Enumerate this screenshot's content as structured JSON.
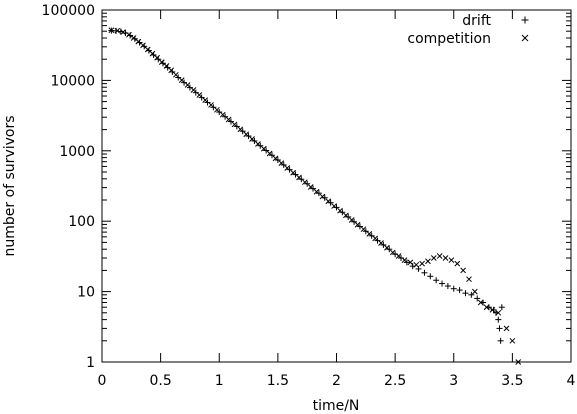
{
  "chart_data": {
    "type": "scatter",
    "title": "",
    "xlabel": "time/N",
    "ylabel": "number of survivors",
    "xlim": [
      0,
      4
    ],
    "ylim": [
      1,
      100000
    ],
    "yscale": "log",
    "grid": false,
    "legend_position": "top-right",
    "x_ticks": [
      {
        "value": 0,
        "label": "0"
      },
      {
        "value": 0.5,
        "label": "0.5"
      },
      {
        "value": 1,
        "label": "1"
      },
      {
        "value": 1.5,
        "label": "1.5"
      },
      {
        "value": 2,
        "label": "2"
      },
      {
        "value": 2.5,
        "label": "2.5"
      },
      {
        "value": 3,
        "label": "3"
      },
      {
        "value": 3.5,
        "label": "3.5"
      },
      {
        "value": 4,
        "label": "4"
      }
    ],
    "y_ticks": [
      {
        "value": 1,
        "label": "1"
      },
      {
        "value": 10,
        "label": "10"
      },
      {
        "value": 100,
        "label": "100"
      },
      {
        "value": 1000,
        "label": "1000"
      },
      {
        "value": 10000,
        "label": "10000"
      },
      {
        "value": 100000,
        "label": "100000"
      }
    ],
    "series": [
      {
        "name": "drift",
        "marker": "plus",
        "color": "#000000",
        "points": [
          [
            0.08,
            51000
          ],
          [
            0.12,
            50500
          ],
          [
            0.16,
            49500
          ],
          [
            0.2,
            47000
          ],
          [
            0.24,
            43500
          ],
          [
            0.28,
            39000
          ],
          [
            0.32,
            34500
          ],
          [
            0.36,
            30500
          ],
          [
            0.4,
            26500
          ],
          [
            0.44,
            23000
          ],
          [
            0.48,
            20000
          ],
          [
            0.52,
            17500
          ],
          [
            0.56,
            15200
          ],
          [
            0.6,
            13200
          ],
          [
            0.65,
            11000
          ],
          [
            0.7,
            9300
          ],
          [
            0.75,
            7900
          ],
          [
            0.8,
            6700
          ],
          [
            0.85,
            5700
          ],
          [
            0.9,
            4850
          ],
          [
            0.95,
            4150
          ],
          [
            1.0,
            3550
          ],
          [
            1.05,
            3050
          ],
          [
            1.1,
            2600
          ],
          [
            1.15,
            2220
          ],
          [
            1.2,
            1900
          ],
          [
            1.25,
            1620
          ],
          [
            1.3,
            1380
          ],
          [
            1.35,
            1180
          ],
          [
            1.4,
            1010
          ],
          [
            1.45,
            865
          ],
          [
            1.5,
            740
          ],
          [
            1.55,
            630
          ],
          [
            1.6,
            540
          ],
          [
            1.65,
            460
          ],
          [
            1.7,
            395
          ],
          [
            1.75,
            340
          ],
          [
            1.8,
            290
          ],
          [
            1.85,
            250
          ],
          [
            1.9,
            215
          ],
          [
            1.95,
            183
          ],
          [
            2.0,
            157
          ],
          [
            2.05,
            134
          ],
          [
            2.1,
            115
          ],
          [
            2.15,
            98
          ],
          [
            2.2,
            84
          ],
          [
            2.25,
            72
          ],
          [
            2.3,
            62
          ],
          [
            2.35,
            53
          ],
          [
            2.4,
            46
          ],
          [
            2.45,
            40
          ],
          [
            2.5,
            34
          ],
          [
            2.55,
            30
          ],
          [
            2.6,
            26
          ],
          [
            2.65,
            23
          ],
          [
            2.7,
            21
          ],
          [
            2.75,
            18.5
          ],
          [
            2.8,
            16.5
          ],
          [
            2.85,
            14.5
          ],
          [
            2.9,
            13
          ],
          [
            2.95,
            12
          ],
          [
            3.0,
            11
          ],
          [
            3.05,
            10.5
          ],
          [
            3.1,
            9.5
          ],
          [
            3.15,
            9
          ],
          [
            3.2,
            8
          ],
          [
            3.25,
            7
          ],
          [
            3.3,
            6
          ],
          [
            3.34,
            5.5
          ],
          [
            3.36,
            5
          ],
          [
            3.38,
            4
          ],
          [
            3.39,
            3
          ],
          [
            3.4,
            2
          ],
          [
            3.41,
            6
          ]
        ]
      },
      {
        "name": "competition",
        "marker": "cross",
        "color": "#000000",
        "points": [
          [
            0.08,
            51500
          ],
          [
            0.13,
            50800
          ],
          [
            0.18,
            48500
          ],
          [
            0.23,
            44500
          ],
          [
            0.27,
            40000
          ],
          [
            0.31,
            35500
          ],
          [
            0.35,
            31500
          ],
          [
            0.39,
            27500
          ],
          [
            0.43,
            24000
          ],
          [
            0.47,
            21000
          ],
          [
            0.51,
            18200
          ],
          [
            0.55,
            16000
          ],
          [
            0.59,
            13900
          ],
          [
            0.63,
            12000
          ],
          [
            0.68,
            10100
          ],
          [
            0.73,
            8600
          ],
          [
            0.78,
            7300
          ],
          [
            0.83,
            6200
          ],
          [
            0.88,
            5250
          ],
          [
            0.93,
            4480
          ],
          [
            0.98,
            3820
          ],
          [
            1.03,
            3260
          ],
          [
            1.08,
            2780
          ],
          [
            1.13,
            2370
          ],
          [
            1.18,
            2020
          ],
          [
            1.23,
            1720
          ],
          [
            1.28,
            1470
          ],
          [
            1.33,
            1250
          ],
          [
            1.38,
            1070
          ],
          [
            1.43,
            915
          ],
          [
            1.48,
            780
          ],
          [
            1.53,
            668
          ],
          [
            1.58,
            570
          ],
          [
            1.63,
            488
          ],
          [
            1.68,
            418
          ],
          [
            1.73,
            358
          ],
          [
            1.78,
            306
          ],
          [
            1.83,
            262
          ],
          [
            1.88,
            224
          ],
          [
            1.93,
            192
          ],
          [
            1.98,
            164
          ],
          [
            2.03,
            141
          ],
          [
            2.08,
            121
          ],
          [
            2.13,
            104
          ],
          [
            2.18,
            89
          ],
          [
            2.23,
            77
          ],
          [
            2.28,
            66
          ],
          [
            2.33,
            57
          ],
          [
            2.38,
            49
          ],
          [
            2.43,
            42
          ],
          [
            2.48,
            36
          ],
          [
            2.53,
            32
          ],
          [
            2.58,
            28
          ],
          [
            2.63,
            26
          ],
          [
            2.68,
            24
          ],
          [
            2.73,
            25
          ],
          [
            2.78,
            27
          ],
          [
            2.83,
            30
          ],
          [
            2.88,
            32
          ],
          [
            2.93,
            30
          ],
          [
            2.98,
            28
          ],
          [
            3.03,
            25
          ],
          [
            3.08,
            20
          ],
          [
            3.13,
            15
          ],
          [
            3.18,
            10
          ],
          [
            3.23,
            7
          ],
          [
            3.28,
            6
          ],
          [
            3.33,
            5.5
          ],
          [
            3.38,
            5
          ],
          [
            3.45,
            3
          ],
          [
            3.5,
            2
          ],
          [
            3.55,
            1
          ]
        ]
      }
    ]
  }
}
